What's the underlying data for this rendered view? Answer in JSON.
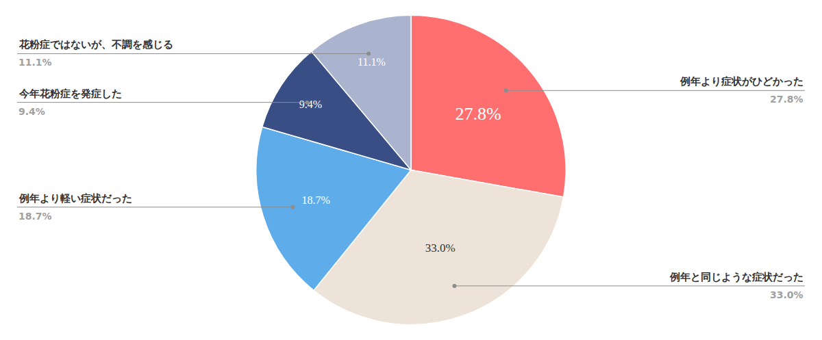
{
  "chart_data": {
    "type": "pie",
    "categories": [
      "例年より症状がひどかった",
      "例年と同じような症状だった",
      "例年より軽い症状だった",
      "今年花粉症を発症した",
      "花粉症ではないが、不調を感じる"
    ],
    "values": [
      27.8,
      33.0,
      18.7,
      9.4,
      11.1
    ],
    "value_labels": [
      "27.8%",
      "33.0%",
      "18.7%",
      "9.4%",
      "11.1%"
    ],
    "colors": [
      "#ff6f6f",
      "#ede3d8",
      "#5eadea",
      "#3a4e86",
      "#aab4cf"
    ],
    "data_labels": true,
    "legend": false
  }
}
